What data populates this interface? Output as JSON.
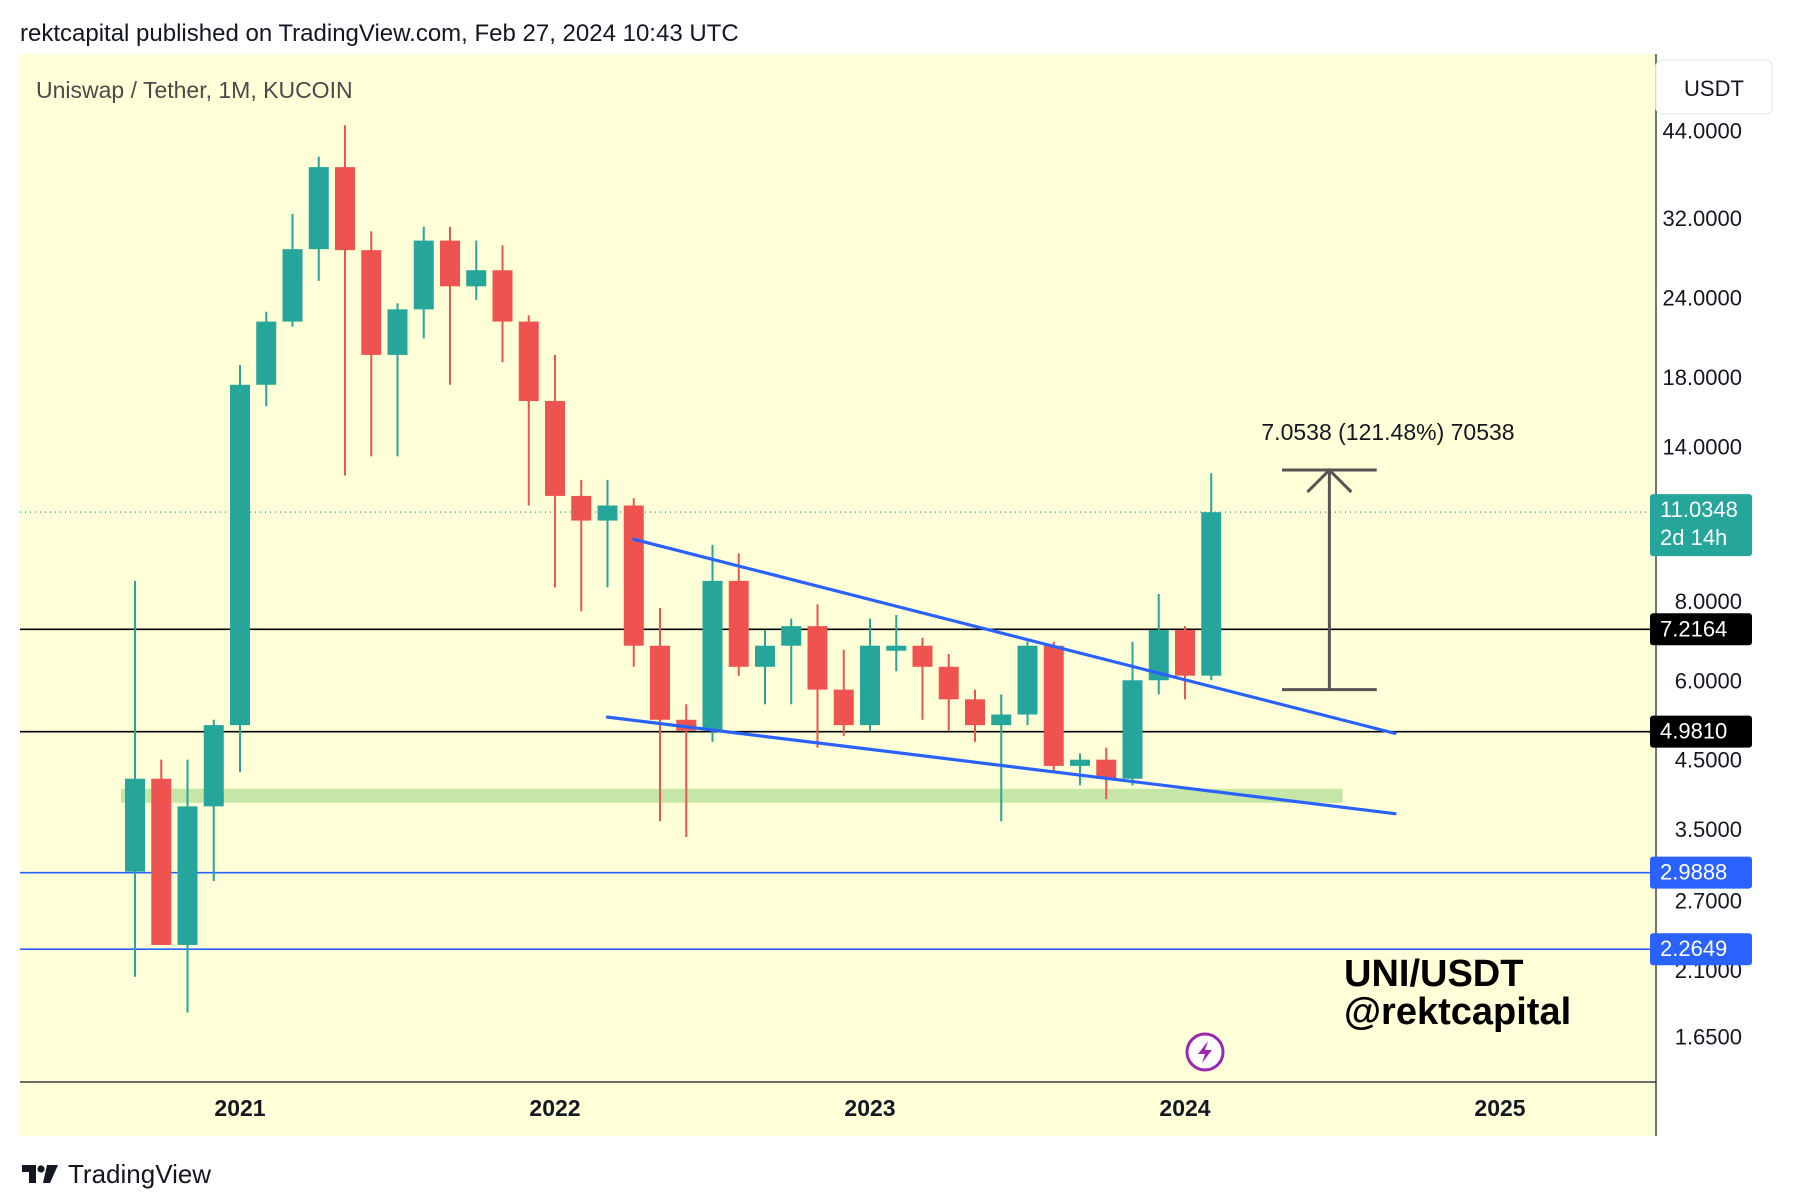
{
  "header": {
    "text": "rektcapital published on TradingView.com, Feb 27, 2024 10:43 UTC"
  },
  "footer": {
    "brand": "TradingView",
    "logo_icon": "tradingview-logo-icon"
  },
  "chart_data": {
    "type": "candlestick",
    "title": "Uniswap / Tether, 1M, KUCOIN",
    "currency": "USDT",
    "y_scale": "log",
    "ylim": [
      1.4,
      58
    ],
    "y_ticks": [
      "44.0000",
      "32.0000",
      "24.0000",
      "18.0000",
      "14.0000",
      "8.0000",
      "6.0000",
      "4.5000",
      "3.5000",
      "2.7000",
      "2.1000",
      "1.6500"
    ],
    "x_ticks": [
      {
        "label": "2021",
        "date": "2021-01"
      },
      {
        "label": "2022",
        "date": "2022-01"
      },
      {
        "label": "2023",
        "date": "2023-01"
      },
      {
        "label": "2024",
        "date": "2024-01"
      },
      {
        "label": "2025",
        "date": "2025-01"
      }
    ],
    "colors": {
      "up": "#26a69a",
      "down": "#ef5350",
      "background": "#ffffd8",
      "trendline": "#2962ff",
      "zone": "#c5e6a6",
      "level": "#000000",
      "support": "#2962ff"
    },
    "candles": [
      {
        "date": "2020-09",
        "o": 3.0,
        "h": 8.6,
        "l": 2.05,
        "c": 4.2
      },
      {
        "date": "2020-10",
        "o": 4.2,
        "h": 4.5,
        "l": 2.3,
        "c": 2.3
      },
      {
        "date": "2020-11",
        "o": 2.3,
        "h": 4.5,
        "l": 1.8,
        "c": 3.8
      },
      {
        "date": "2020-12",
        "o": 3.8,
        "h": 5.2,
        "l": 2.9,
        "c": 5.1
      },
      {
        "date": "2021-01",
        "o": 5.1,
        "h": 18.8,
        "l": 4.3,
        "c": 17.5
      },
      {
        "date": "2021-02",
        "o": 17.5,
        "h": 22.8,
        "l": 16.2,
        "c": 22.0
      },
      {
        "date": "2021-03",
        "o": 22.0,
        "h": 32.5,
        "l": 21.6,
        "c": 28.6
      },
      {
        "date": "2021-04",
        "o": 28.6,
        "h": 40.0,
        "l": 25.5,
        "c": 38.5
      },
      {
        "date": "2021-05",
        "o": 38.5,
        "h": 44.8,
        "l": 12.6,
        "c": 28.5
      },
      {
        "date": "2021-06",
        "o": 28.5,
        "h": 30.5,
        "l": 13.5,
        "c": 19.5
      },
      {
        "date": "2021-07",
        "o": 19.5,
        "h": 23.5,
        "l": 13.5,
        "c": 23.0
      },
      {
        "date": "2021-08",
        "o": 23.0,
        "h": 31.0,
        "l": 20.7,
        "c": 29.5
      },
      {
        "date": "2021-09",
        "o": 29.5,
        "h": 31.0,
        "l": 17.5,
        "c": 25.0
      },
      {
        "date": "2021-10",
        "o": 25.0,
        "h": 29.5,
        "l": 23.8,
        "c": 26.5
      },
      {
        "date": "2021-11",
        "o": 26.5,
        "h": 29.0,
        "l": 19.0,
        "c": 22.0
      },
      {
        "date": "2021-12",
        "o": 22.0,
        "h": 22.5,
        "l": 11.3,
        "c": 16.5
      },
      {
        "date": "2022-01",
        "o": 16.5,
        "h": 19.5,
        "l": 8.4,
        "c": 11.7
      },
      {
        "date": "2022-02",
        "o": 11.7,
        "h": 12.4,
        "l": 7.7,
        "c": 10.7
      },
      {
        "date": "2022-03",
        "o": 10.7,
        "h": 12.4,
        "l": 8.4,
        "c": 11.3
      },
      {
        "date": "2022-04",
        "o": 11.3,
        "h": 11.6,
        "l": 6.3,
        "c": 6.8
      },
      {
        "date": "2022-05",
        "o": 6.8,
        "h": 7.8,
        "l": 3.6,
        "c": 5.2
      },
      {
        "date": "2022-06",
        "o": 5.2,
        "h": 5.5,
        "l": 3.4,
        "c": 5.0
      },
      {
        "date": "2022-07",
        "o": 5.0,
        "h": 9.8,
        "l": 4.8,
        "c": 8.6
      },
      {
        "date": "2022-08",
        "o": 8.6,
        "h": 9.5,
        "l": 6.1,
        "c": 6.3
      },
      {
        "date": "2022-09",
        "o": 6.3,
        "h": 7.2,
        "l": 5.5,
        "c": 6.8
      },
      {
        "date": "2022-10",
        "o": 6.8,
        "h": 7.5,
        "l": 5.5,
        "c": 7.3
      },
      {
        "date": "2022-11",
        "o": 7.3,
        "h": 7.9,
        "l": 4.7,
        "c": 5.8
      },
      {
        "date": "2022-12",
        "o": 5.8,
        "h": 6.7,
        "l": 4.9,
        "c": 5.1
      },
      {
        "date": "2023-01",
        "o": 5.1,
        "h": 7.5,
        "l": 5.0,
        "c": 6.8
      },
      {
        "date": "2023-02",
        "o": 6.8,
        "h": 7.6,
        "l": 6.2,
        "c": 6.8
      },
      {
        "date": "2023-03",
        "o": 6.8,
        "h": 7.0,
        "l": 5.2,
        "c": 6.3
      },
      {
        "date": "2023-04",
        "o": 6.3,
        "h": 6.6,
        "l": 5.0,
        "c": 5.6
      },
      {
        "date": "2023-05",
        "o": 5.6,
        "h": 5.8,
        "l": 4.8,
        "c": 5.1
      },
      {
        "date": "2023-06",
        "o": 5.1,
        "h": 5.7,
        "l": 3.6,
        "c": 5.3
      },
      {
        "date": "2023-07",
        "o": 5.3,
        "h": 6.9,
        "l": 5.1,
        "c": 6.8
      },
      {
        "date": "2023-08",
        "o": 6.8,
        "h": 6.9,
        "l": 4.3,
        "c": 4.4
      },
      {
        "date": "2023-09",
        "o": 4.4,
        "h": 4.6,
        "l": 4.1,
        "c": 4.5
      },
      {
        "date": "2023-10",
        "o": 4.5,
        "h": 4.7,
        "l": 3.9,
        "c": 4.2
      },
      {
        "date": "2023-11",
        "o": 4.2,
        "h": 6.9,
        "l": 4.1,
        "c": 6.0
      },
      {
        "date": "2023-12",
        "o": 6.0,
        "h": 8.2,
        "l": 5.7,
        "c": 7.2
      },
      {
        "date": "2024-01",
        "o": 7.2,
        "h": 7.3,
        "l": 5.6,
        "c": 6.1
      },
      {
        "date": "2024-02",
        "o": 6.1,
        "h": 12.7,
        "l": 6.0,
        "c": 11.03
      }
    ],
    "horizontal_levels": [
      {
        "value": 7.2164,
        "label": "7.2164",
        "style": "black"
      },
      {
        "value": 4.981,
        "label": "4.9810",
        "style": "black"
      },
      {
        "value": 2.9888,
        "label": "2.9888",
        "style": "blue"
      },
      {
        "value": 2.2649,
        "label": "2.2649",
        "style": "blue"
      }
    ],
    "last_price": {
      "value": 11.0348,
      "label": "11.0348",
      "countdown": "2d 14h"
    },
    "support_zone": {
      "from": "2020-09",
      "to": "2024-07",
      "low": 3.85,
      "high": 4.05
    },
    "trendlines": [
      {
        "name": "upper",
        "start": {
          "date": "2022-04",
          "value": 10.0
        },
        "end": {
          "date": "2024-09",
          "value": 4.95
        }
      },
      {
        "name": "lower",
        "start": {
          "date": "2022-03",
          "value": 5.25
        },
        "end": {
          "date": "2024-09",
          "value": 3.7
        }
      }
    ],
    "measure": {
      "from_date": "2024-05",
      "to_date": "2024-08",
      "low": 5.8,
      "high": 12.85,
      "label": "7.0538 (121.48%) 70538"
    },
    "annotation": {
      "line1": "UNI/USDT",
      "line2": "@rektcapital"
    },
    "event_icon": {
      "date": "2024-01",
      "name": "bolt-icon"
    }
  }
}
